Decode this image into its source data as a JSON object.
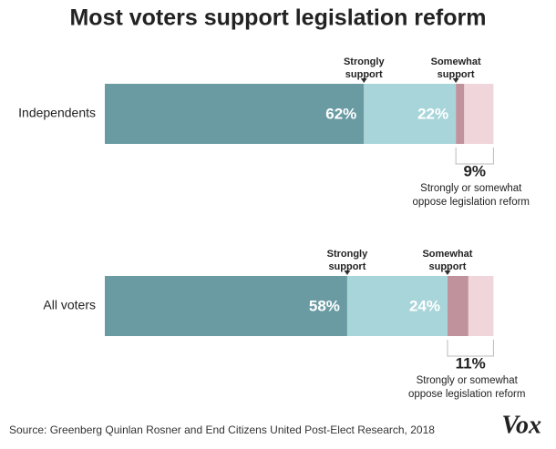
{
  "chart_data": {
    "type": "bar",
    "orientation": "horizontal",
    "stacked": true,
    "title": "Most voters support legislation reform",
    "categories": [
      "Independents",
      "All voters"
    ],
    "xlim": [
      0,
      100
    ],
    "series": [
      {
        "name": "Strongly support",
        "color": "#6a9ba3",
        "values": [
          62,
          58
        ],
        "value_labels": [
          "62%",
          "58%"
        ]
      },
      {
        "name": "Somewhat support",
        "color": "#a8d5d9",
        "values": [
          22,
          24
        ],
        "value_labels": [
          "22%",
          "24%"
        ]
      },
      {
        "color": "#c0939c",
        "values": [
          2,
          5
        ]
      },
      {
        "color": "#f0d5da",
        "values": [
          7,
          6
        ]
      }
    ],
    "oppose_total": {
      "values": [
        9,
        11
      ],
      "value_labels": [
        "9%",
        "11%"
      ],
      "label_lines": [
        "Strongly or somewhat",
        "oppose legislation reform"
      ]
    },
    "source": "Source: Greenberg Quinlan Rosner and End Citizens United Post-Elect Research, 2018",
    "logo": "Vox"
  }
}
